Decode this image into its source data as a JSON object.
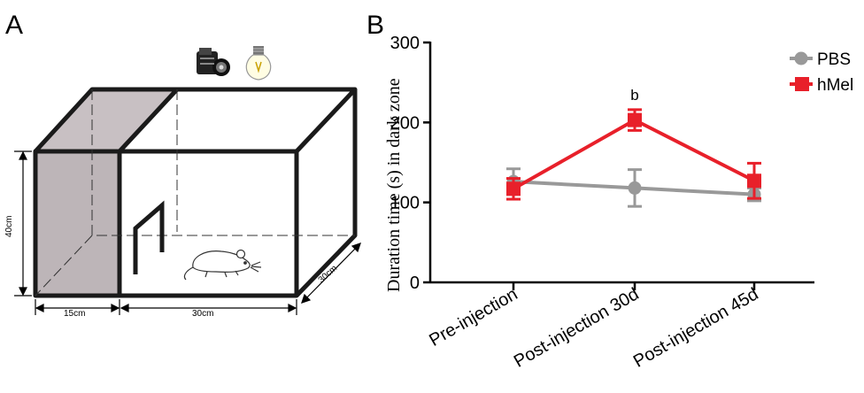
{
  "panels": {
    "a_label": "A",
    "b_label": "B"
  },
  "apparatus": {
    "dim_height": "40cm",
    "dim_dark_width": "15cm",
    "dim_light_width": "30cm",
    "dim_depth": "30cm",
    "icons": [
      "camera-icon",
      "light-bulb-icon",
      "mouse-icon"
    ]
  },
  "chart_data": {
    "type": "line",
    "title": "",
    "xlabel": "",
    "ylabel": "Duration time (s) in dark zone",
    "categories": [
      "Pre-injection",
      "Post-injection 30d",
      "Post-injection 45d"
    ],
    "ylim": [
      0,
      300
    ],
    "yticks": [
      0,
      100,
      200,
      300
    ],
    "grid": false,
    "legend": "top-right",
    "series": [
      {
        "name": "PBS",
        "color": "#999999",
        "marker": "circle",
        "values": [
          126,
          118,
          110
        ],
        "errors": [
          16,
          23,
          8
        ]
      },
      {
        "name": "hMel",
        "color": "#e8202a",
        "marker": "square",
        "values": [
          117,
          203,
          127
        ],
        "errors": [
          13,
          13,
          22
        ]
      }
    ],
    "annotations": [
      {
        "text": "b",
        "category": "Post-injection 30d",
        "value": 228
      }
    ]
  }
}
